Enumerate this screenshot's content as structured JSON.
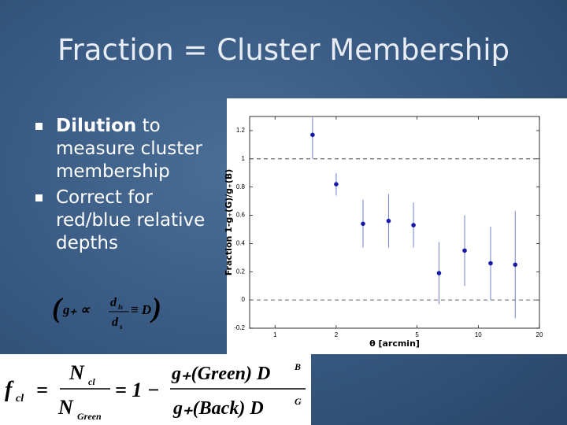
{
  "slide": {
    "title": "Fraction = Cluster Membership",
    "bullets": [
      {
        "bold": "Dilution",
        "text": "to measure cluster membership"
      },
      {
        "text": "Correct for red/blue relative depths"
      }
    ],
    "equation1": {
      "lhs": "g₊ ∝",
      "num": "d",
      "num_sub": "ls",
      "den": "d",
      "den_sub": "s",
      "rhs": "≡ D"
    },
    "equation2": {
      "lhs": "f",
      "lhs_sub": "cl",
      "eq": "=",
      "num": "N",
      "num_sub": "cl",
      "den": "N",
      "den_sub": "Green",
      "mid": "= 1 −",
      "num2": "g₊(Green) D",
      "num2_sup": "B",
      "den2": "g₊(Back) D",
      "den2_sup": "G"
    }
  },
  "chart_data": {
    "type": "scatter",
    "x_label": "θ [arcmin]",
    "y_label": "Fraction   1-g₊(G)/g₊(B)",
    "x_log": true,
    "xlim": [
      0.75,
      20
    ],
    "xticks": [
      1,
      2,
      5,
      10,
      20
    ],
    "ylim": [
      -0.2,
      1.3
    ],
    "yticks": [
      -0.2,
      0,
      0.2,
      0.4,
      0.6,
      0.8,
      1,
      1.2
    ],
    "hlines": [
      0,
      1
    ],
    "series": [
      {
        "color": "#1a1aa8",
        "error_color": "#6f7fd0",
        "x": [
          1.53,
          2.0,
          2.71,
          3.62,
          4.8,
          6.41,
          8.57,
          11.5,
          15.2
        ],
        "values": [
          1.17,
          0.82,
          0.54,
          0.56,
          0.53,
          0.19,
          0.35,
          0.26,
          0.25
        ],
        "errors": [
          0.17,
          0.08,
          0.17,
          0.19,
          0.16,
          0.22,
          0.25,
          0.26,
          0.38
        ]
      }
    ]
  }
}
